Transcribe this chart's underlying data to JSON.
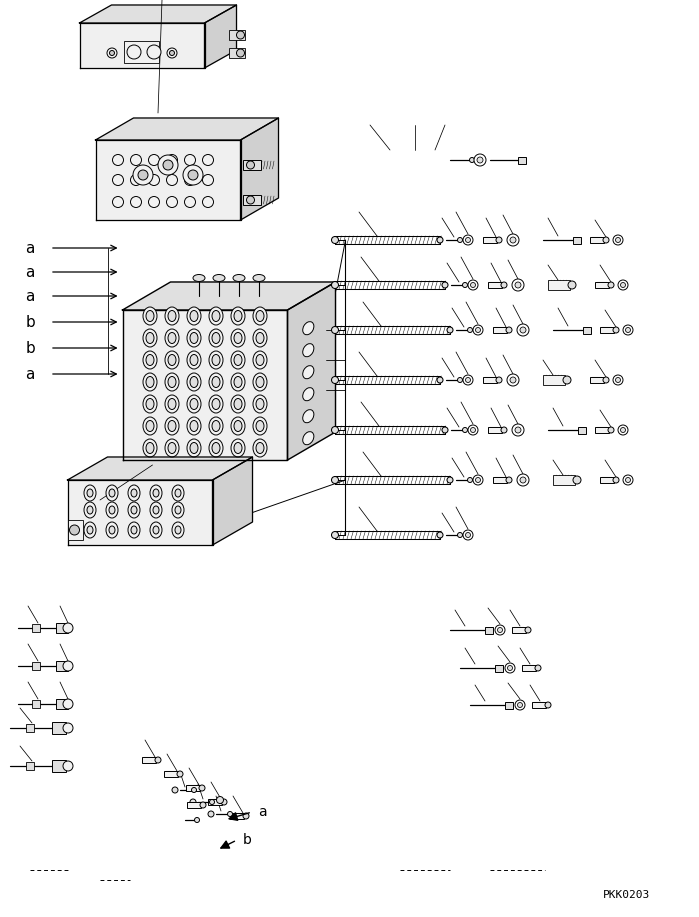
{
  "bg_color": "#ffffff",
  "line_color": "#000000",
  "fig_width": 6.99,
  "fig_height": 9.17,
  "dpi": 100,
  "watermark": "PKK0203",
  "labels_left": [
    "a",
    "a",
    "a",
    "b",
    "b",
    "a"
  ],
  "labels_bottom": [
    "a",
    "b"
  ],
  "face_color_light": "#f2f2f2",
  "face_color_mid": "#e0e0e0",
  "face_color_dark": "#cccccc"
}
